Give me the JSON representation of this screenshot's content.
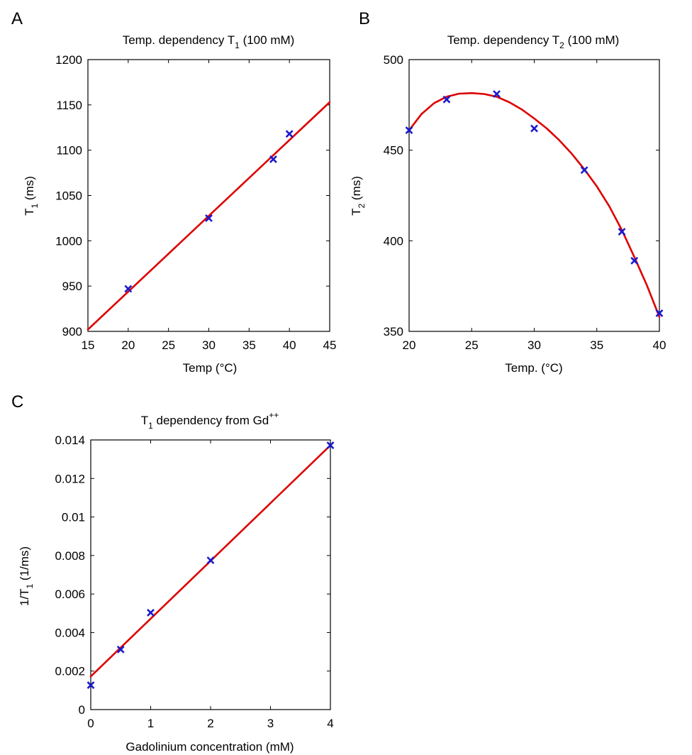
{
  "colors": {
    "marker": "#1a1acc",
    "fit": "#dd0000",
    "axes": "#000000"
  },
  "chart_data": [
    {
      "panel": "A",
      "type": "scatter",
      "title": "Temp. dependency T",
      "title_sub": "1",
      "title_rest": " (100 mM)",
      "xlabel": "Temp (°C)",
      "ylabel": "T",
      "ylabel_sub": "1",
      "ylabel_rest": " (ms)",
      "xlim": [
        15,
        45
      ],
      "ylim": [
        900,
        1200
      ],
      "xticks": [
        15,
        20,
        25,
        30,
        35,
        40,
        45
      ],
      "yticks": [
        900,
        950,
        1000,
        1050,
        1100,
        1150,
        1200
      ],
      "grid": false,
      "points": [
        [
          20,
          947
        ],
        [
          30,
          1025
        ],
        [
          38,
          1090
        ],
        [
          40,
          1118
        ]
      ],
      "fit": {
        "kind": "line",
        "points": [
          [
            15,
            902
          ],
          [
            45,
            1153
          ]
        ]
      }
    },
    {
      "panel": "B",
      "type": "scatter",
      "title": "Temp. dependency T",
      "title_sub": "2",
      "title_rest": " (100 mM)",
      "xlabel": "Temp. (°C)",
      "ylabel": "T",
      "ylabel_sub": "2",
      "ylabel_rest": " (ms)",
      "xlim": [
        20,
        40
      ],
      "ylim": [
        350,
        500
      ],
      "xticks": [
        20,
        25,
        30,
        35,
        40
      ],
      "yticks": [
        350,
        400,
        450,
        500
      ],
      "grid": false,
      "points": [
        [
          20,
          461
        ],
        [
          23,
          478
        ],
        [
          27,
          481
        ],
        [
          30,
          462
        ],
        [
          34,
          439
        ],
        [
          37,
          405
        ],
        [
          38,
          389
        ],
        [
          40,
          360
        ]
      ],
      "fit": {
        "kind": "curve",
        "points": [
          [
            20,
            461
          ],
          [
            21,
            470
          ],
          [
            22,
            476
          ],
          [
            23,
            479.5
          ],
          [
            24,
            481.2
          ],
          [
            25,
            481.5
          ],
          [
            26,
            481
          ],
          [
            27,
            479.5
          ],
          [
            28,
            476.5
          ],
          [
            29,
            472.5
          ],
          [
            30,
            467.5
          ],
          [
            31,
            462
          ],
          [
            32,
            455.5
          ],
          [
            33,
            448
          ],
          [
            34,
            439.5
          ],
          [
            35,
            430
          ],
          [
            36,
            419
          ],
          [
            37,
            406
          ],
          [
            38,
            391
          ],
          [
            39,
            375.5
          ],
          [
            40,
            358
          ]
        ]
      }
    },
    {
      "panel": "C",
      "type": "scatter",
      "title": "T",
      "title_sub": "1",
      "title_rest": " dependency from Gd",
      "title_sup": "++",
      "xlabel": "Gadolinium concentration (mM)",
      "ylabel": "1/T",
      "ylabel_sub": "1",
      "ylabel_rest": " (1/ms)",
      "xlim": [
        0,
        4
      ],
      "ylim": [
        0,
        0.014
      ],
      "xticks": [
        0,
        1,
        2,
        3,
        4
      ],
      "yticks": [
        0,
        0.002,
        0.004,
        0.006,
        0.008,
        0.01,
        0.012,
        0.014
      ],
      "ytick_labels": [
        "0",
        "0.002",
        "0.004",
        "0.006",
        "0.008",
        "0.01",
        "0.012",
        "0.014"
      ],
      "grid": false,
      "points": [
        [
          0,
          0.00127
        ],
        [
          0.5,
          0.00312
        ],
        [
          1,
          0.00503
        ],
        [
          2,
          0.00775
        ],
        [
          4,
          0.01372
        ]
      ],
      "fit": {
        "kind": "line",
        "points": [
          [
            0,
            0.00172
          ],
          [
            4,
            0.01372
          ]
        ]
      }
    }
  ]
}
